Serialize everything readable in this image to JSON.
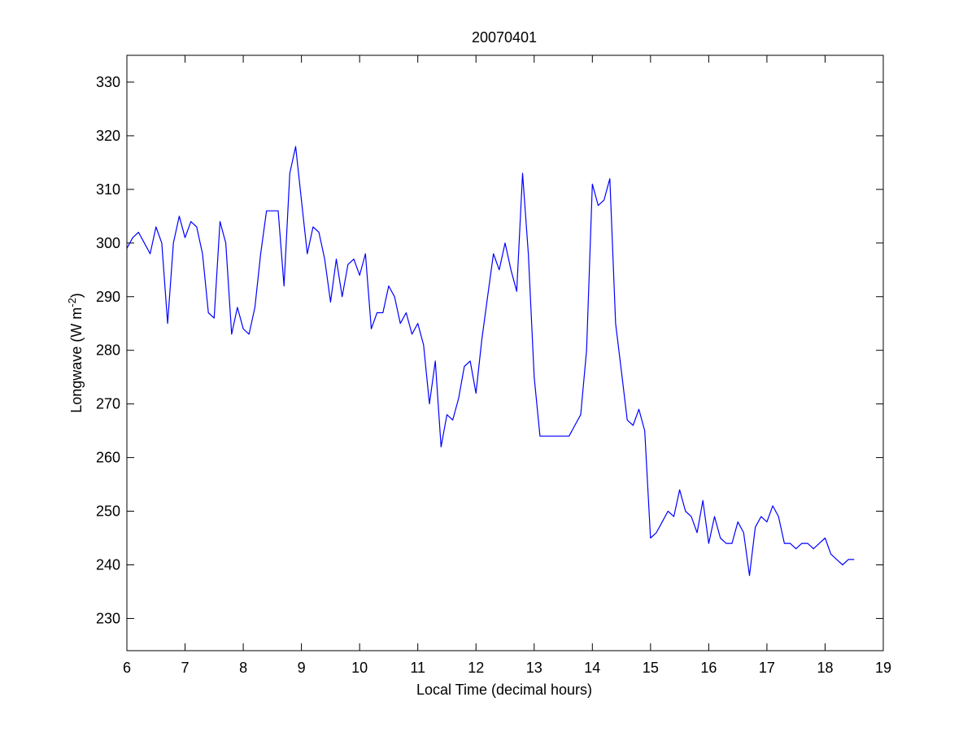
{
  "chart_data": {
    "type": "line",
    "title": "20070401",
    "xlabel": "Local Time (decimal hours)",
    "ylabel": {
      "main": "Longwave (W m",
      "sup": "-2",
      "close": ")"
    },
    "xlim": [
      6,
      19
    ],
    "ylim": [
      224,
      335
    ],
    "xticks": [
      6,
      7,
      8,
      9,
      10,
      11,
      12,
      13,
      14,
      15,
      16,
      17,
      18,
      19
    ],
    "yticks": [
      230,
      240,
      250,
      260,
      270,
      280,
      290,
      300,
      310,
      320,
      330
    ],
    "grid": false,
    "line_color": "#0000ff",
    "series": [
      {
        "x": [
          6.0,
          6.1,
          6.2,
          6.3,
          6.4,
          6.5,
          6.6,
          6.7,
          6.8,
          6.9,
          7.0,
          7.1,
          7.2,
          7.3,
          7.4,
          7.5,
          7.6,
          7.7,
          7.8,
          7.9,
          8.0,
          8.1,
          8.2,
          8.3,
          8.4,
          8.5,
          8.6,
          8.7,
          8.8,
          8.9,
          9.0,
          9.1,
          9.2,
          9.3,
          9.4,
          9.5,
          9.6,
          9.7,
          9.8,
          9.9,
          10.0,
          10.1,
          10.2,
          10.3,
          10.4,
          10.5,
          10.6,
          10.7,
          10.8,
          10.9,
          11.0,
          11.1,
          11.2,
          11.3,
          11.4,
          11.5,
          11.6,
          11.7,
          11.8,
          11.9,
          12.0,
          12.1,
          12.2,
          12.3,
          12.4,
          12.5,
          12.6,
          12.7,
          12.8,
          12.9,
          13.0,
          13.1,
          13.2,
          13.3,
          13.4,
          13.5,
          13.6,
          13.7,
          13.8,
          13.9,
          14.0,
          14.1,
          14.2,
          14.3,
          14.4,
          14.5,
          14.6,
          14.7,
          14.8,
          14.9,
          15.0,
          15.1,
          15.2,
          15.3,
          15.4,
          15.5,
          15.6,
          15.7,
          15.8,
          15.9,
          16.0,
          16.1,
          16.2,
          16.3,
          16.4,
          16.5,
          16.6,
          16.7,
          16.8,
          16.9,
          17.0,
          17.1,
          17.2,
          17.3,
          17.4,
          17.5,
          17.6,
          17.7,
          17.8,
          17.9,
          18.0,
          18.1,
          18.2,
          18.3,
          18.4,
          18.5
        ],
        "y": [
          299,
          301,
          302,
          300,
          298,
          303,
          300,
          285,
          300,
          305,
          301,
          304,
          303,
          298,
          287,
          286,
          304,
          300,
          283,
          288,
          284,
          283,
          288,
          298,
          306,
          306,
          306,
          292,
          313,
          318,
          308,
          298,
          303,
          302,
          297,
          289,
          297,
          290,
          296,
          297,
          294,
          298,
          284,
          287,
          287,
          292,
          290,
          285,
          287,
          283,
          285,
          281,
          270,
          278,
          262,
          268,
          267,
          271,
          277,
          278,
          272,
          282,
          290,
          298,
          295,
          300,
          295,
          291,
          313,
          298,
          275,
          264,
          264,
          264,
          264,
          264,
          264,
          266,
          268,
          280,
          311,
          307,
          308,
          312,
          285,
          276,
          267,
          266,
          269,
          265,
          245,
          246,
          248,
          250,
          249,
          254,
          250,
          249,
          246,
          252,
          244,
          249,
          245,
          244,
          244,
          248,
          246,
          238,
          247,
          249,
          248,
          251,
          249,
          244,
          244,
          243,
          244,
          244,
          243,
          244,
          245,
          242,
          241,
          240,
          241,
          241
        ]
      }
    ]
  }
}
